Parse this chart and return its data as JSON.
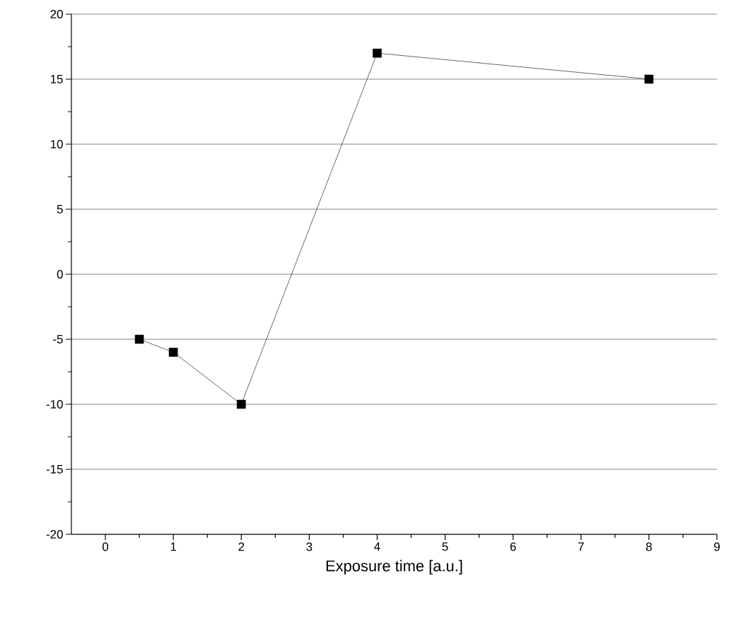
{
  "chart_data": {
    "type": "line",
    "xlabel": "Exposure time [a.u.]",
    "x": [
      0.5,
      1,
      2,
      4,
      8
    ],
    "series": [
      {
        "color": "#000000",
        "values": [
          -5,
          -6,
          -10,
          17,
          15
        ]
      }
    ],
    "xlim": [
      -0.5,
      9
    ],
    "xticks": [
      0,
      1,
      2,
      3,
      4,
      5,
      6,
      7,
      8,
      9
    ],
    "ylim": [
      -20,
      20
    ],
    "yticks": [
      -20,
      -15,
      -10,
      -5,
      0,
      5,
      10,
      15,
      20
    ],
    "grid": "y",
    "marker": "square",
    "line_style": "solid"
  }
}
